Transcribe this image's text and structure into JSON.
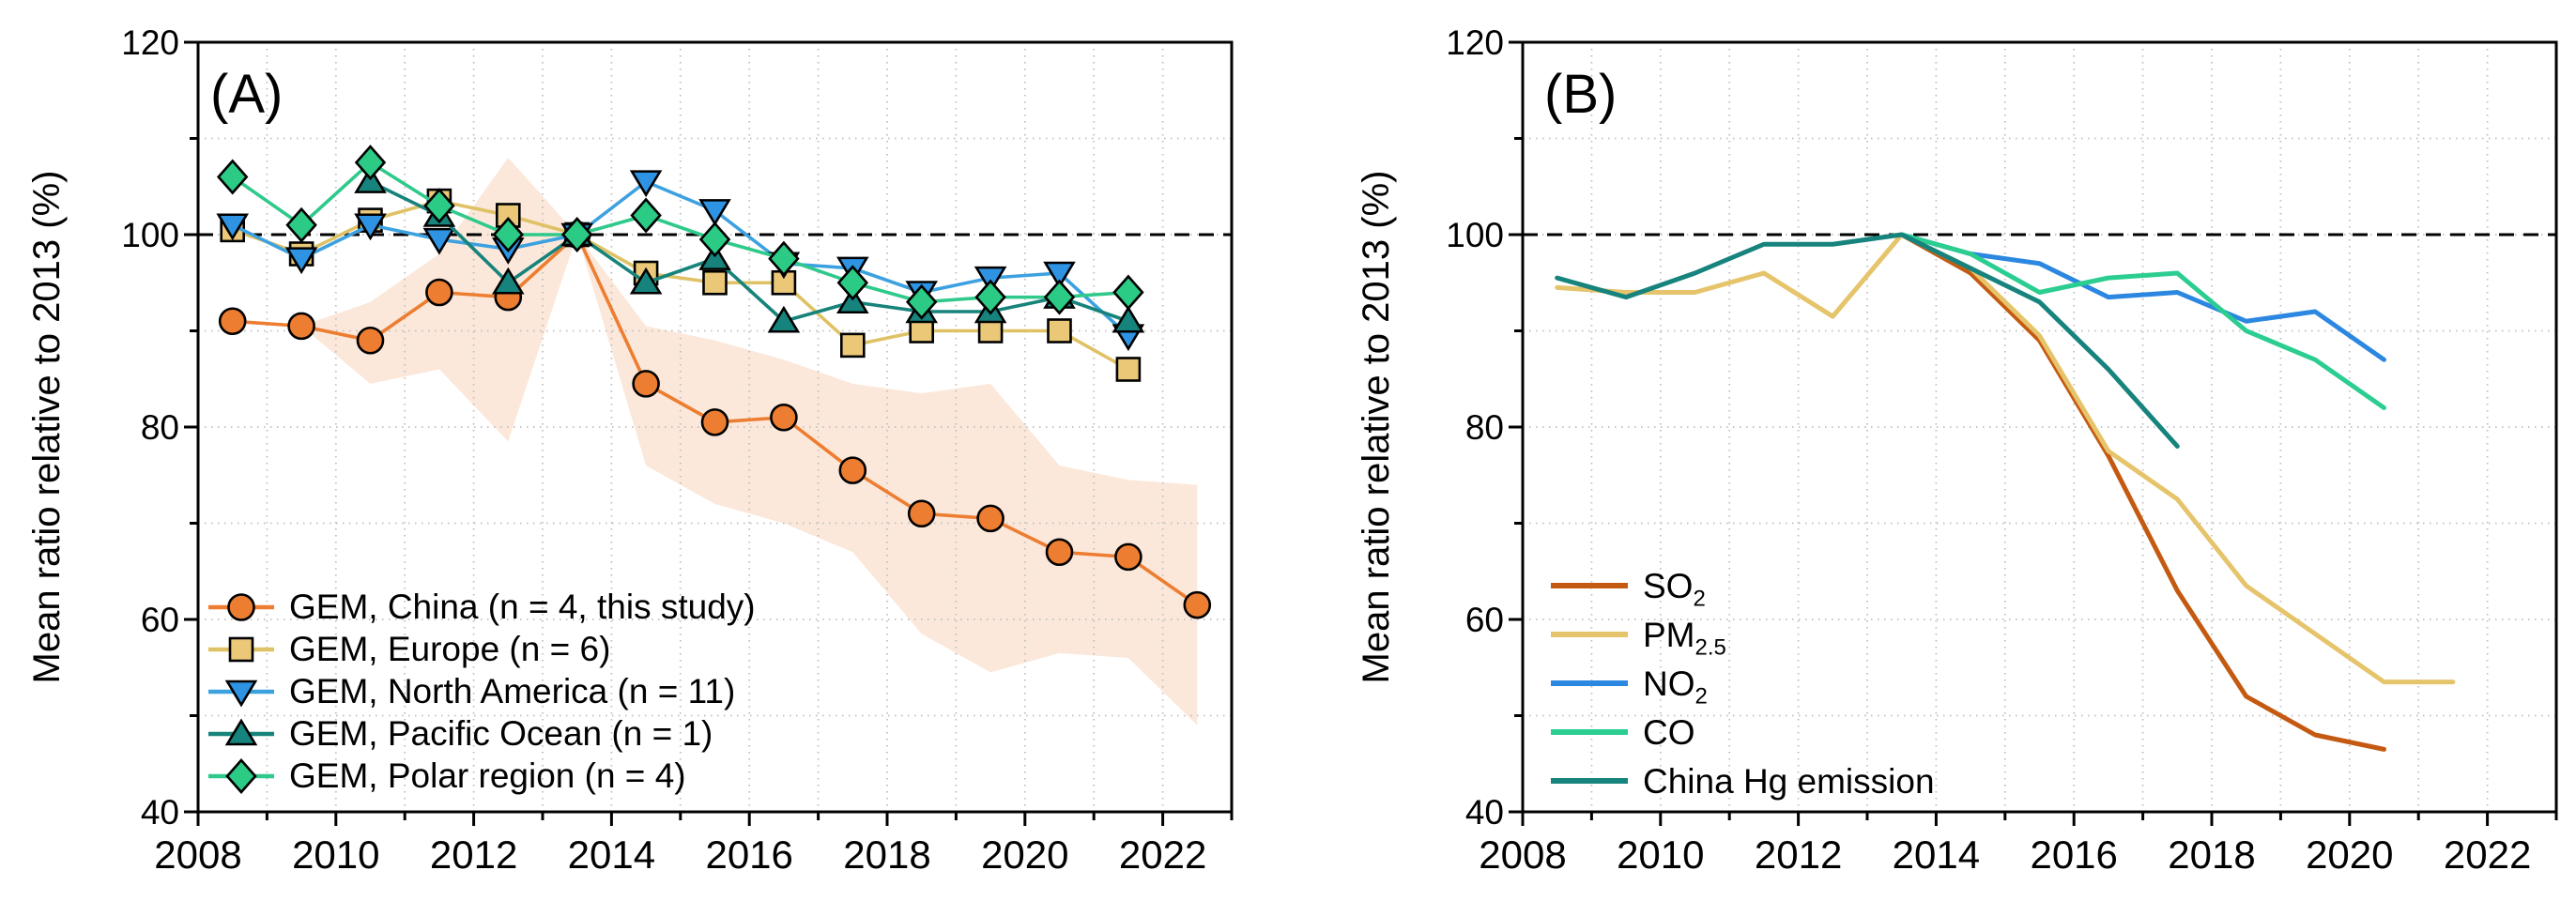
{
  "figure": {
    "kind": "two-panel scientific line chart",
    "background": "#ffffff",
    "text_color": "#000000",
    "grid_color": "#bfbfbf",
    "refline_color": "#000000"
  },
  "chart_data": [
    {
      "type": "line",
      "panel_label": "(A)",
      "ylabel": "Mean ratio relative to 2013 (%)",
      "xlabel": "",
      "xlim": [
        2008,
        2023
      ],
      "ylim": [
        40,
        120
      ],
      "x_ticks": [
        2008,
        2010,
        2012,
        2014,
        2016,
        2018,
        2020,
        2022
      ],
      "y_ticks": [
        40,
        60,
        80,
        100,
        120
      ],
      "grid": "dotted gridlines every year and every 10 units",
      "refline_y": 100,
      "legend_position": "lower left",
      "band": {
        "label": "GEM China spread",
        "color": "#FBE5D6",
        "x": [
          2009.5,
          2010.5,
          2011.5,
          2012.5,
          2013.5,
          2014.5,
          2015.5,
          2016.5,
          2017.5,
          2018.5,
          2019.5,
          2020.5,
          2021.5,
          2022.5
        ],
        "upper": [
          90.5,
          93,
          98,
          108,
          100,
          90.5,
          89,
          87,
          84.5,
          83.5,
          84.5,
          76,
          74.5,
          74
        ],
        "lower": [
          90.5,
          84.5,
          86,
          78.5,
          100,
          76,
          72,
          70,
          67,
          58.5,
          54.5,
          56.5,
          56,
          49
        ]
      },
      "series": [
        {
          "label_main": "GEM, China (n = 4, this study)",
          "label_sub": "",
          "label_tail": "",
          "marker": "circle",
          "line_color": "#ED7D31",
          "fill_color": "#ED7D31",
          "x": [
            2008.5,
            2009.5,
            2010.5,
            2011.5,
            2012.5,
            2013.5,
            2014.5,
            2015.5,
            2016.5,
            2017.5,
            2018.5,
            2019.5,
            2020.5,
            2021.5,
            2022.5
          ],
          "y": [
            91,
            90.5,
            89,
            94,
            93.5,
            100,
            84.5,
            80.5,
            81,
            75.5,
            71,
            70.5,
            67,
            66.5,
            61.5
          ]
        },
        {
          "label_main": "GEM, Europe (n = 6)",
          "label_sub": "",
          "label_tail": "",
          "marker": "square",
          "line_color": "#DFC266",
          "fill_color": "#EAC878",
          "x": [
            2008.5,
            2009.5,
            2010.5,
            2011.5,
            2012.5,
            2013.5,
            2014.5,
            2015.5,
            2016.5,
            2017.5,
            2018.5,
            2019.5,
            2020.5,
            2021.5
          ],
          "y": [
            100.5,
            98,
            101.5,
            103.5,
            102,
            100,
            96,
            95,
            95,
            88.5,
            90,
            90,
            90,
            86
          ]
        },
        {
          "label_main": "GEM, North America (n = 11)",
          "label_sub": "",
          "label_tail": "",
          "marker": "triangle-down",
          "line_color": "#3DA1E0",
          "fill_color": "#2E93E2",
          "x": [
            2008.5,
            2009.5,
            2010.5,
            2011.5,
            2012.5,
            2013.5,
            2014.5,
            2015.5,
            2016.5,
            2017.5,
            2018.5,
            2019.5,
            2020.5,
            2021.5
          ],
          "y": [
            101,
            97.5,
            101,
            99.5,
            98.5,
            100,
            105.5,
            102.5,
            97,
            96.5,
            94,
            95.5,
            96,
            89.5
          ]
        },
        {
          "label_main": "GEM, Pacific Ocean (n = 1)",
          "label_sub": "",
          "label_tail": "",
          "marker": "triangle-up",
          "line_color": "#17837B",
          "fill_color": "#16837C",
          "x": [
            2010.5,
            2011.5,
            2012.5,
            2013.5,
            2014.5,
            2015.5,
            2016.5,
            2017.5,
            2018.5,
            2019.5,
            2020.5,
            2021.5
          ],
          "y": [
            105.5,
            102,
            95,
            100,
            95,
            97.5,
            91,
            93,
            92,
            92,
            93.5,
            91
          ]
        },
        {
          "label_main": "GEM, Polar region (n = 4)",
          "label_sub": "",
          "label_tail": "",
          "marker": "diamond",
          "line_color": "#2FC98B",
          "fill_color": "#2BCB86",
          "x": [
            2008.5,
            2009.5,
            2010.5,
            2011.5,
            2012.5,
            2013.5,
            2014.5,
            2015.5,
            2016.5,
            2017.5,
            2018.5,
            2019.5,
            2020.5,
            2021.5
          ],
          "y": [
            106,
            101,
            107.5,
            103,
            100,
            100,
            102,
            99.5,
            97.5,
            95,
            93,
            93.5,
            93.5,
            94
          ]
        }
      ]
    },
    {
      "type": "line",
      "panel_label": "(B)",
      "ylabel": "Mean ratio relative to 2013 (%)",
      "xlabel": "",
      "xlim": [
        2008,
        2023
      ],
      "ylim": [
        40,
        120
      ],
      "x_ticks": [
        2008,
        2010,
        2012,
        2014,
        2016,
        2018,
        2020,
        2022
      ],
      "y_ticks": [
        40,
        60,
        80,
        100,
        120
      ],
      "grid": "dotted gridlines every year and every 10 units",
      "refline_y": 100,
      "legend_position": "lower left",
      "band": null,
      "series": [
        {
          "label_main": "SO",
          "label_sub": "2",
          "label_tail": "",
          "marker": "none",
          "line_color": "#C45A11",
          "fill_color": "#C45A11",
          "x": [
            2013.5,
            2014.5,
            2015.5,
            2016.5,
            2017.5,
            2018.5,
            2019.5,
            2020.5
          ],
          "y": [
            100,
            96,
            89,
            77,
            63,
            52,
            48,
            46.5
          ]
        },
        {
          "label_main": "PM",
          "label_sub": "2.5",
          "label_tail": "",
          "marker": "none",
          "line_color": "#E5C46B",
          "fill_color": "#E5C46B",
          "x": [
            2008.5,
            2009.5,
            2010.5,
            2011.5,
            2012.5,
            2013.5,
            2014.5,
            2015.5,
            2016.5,
            2017.5,
            2018.5,
            2019.5,
            2020.5,
            2021.5
          ],
          "y": [
            94.5,
            94,
            94,
            96,
            91.5,
            100,
            96.5,
            89.5,
            77.5,
            72.5,
            63.5,
            58.5,
            53.5,
            53.5
          ]
        },
        {
          "label_main": "NO",
          "label_sub": "2",
          "label_tail": "",
          "marker": "none",
          "line_color": "#2B87E0",
          "fill_color": "#2B87E0",
          "x": [
            2013.5,
            2014.5,
            2015.5,
            2016.5,
            2017.5,
            2018.5,
            2019.5,
            2020.5
          ],
          "y": [
            100,
            98,
            97,
            93.5,
            94,
            91,
            92,
            87
          ]
        },
        {
          "label_main": "CO",
          "label_sub": "",
          "label_tail": "",
          "marker": "none",
          "line_color": "#2BCD90",
          "fill_color": "#2BCD90",
          "x": [
            2013.5,
            2014.5,
            2015.5,
            2016.5,
            2017.5,
            2018.5,
            2019.5,
            2020.5
          ],
          "y": [
            100,
            98,
            94,
            95.5,
            96,
            90,
            87,
            82
          ]
        },
        {
          "label_main": "China Hg emission",
          "label_sub": "",
          "label_tail": "",
          "marker": "none",
          "line_color": "#16837C",
          "fill_color": "#16837C",
          "x": [
            2008.5,
            2009.5,
            2010.5,
            2011.5,
            2012.5,
            2013.5,
            2014.5,
            2015.5,
            2016.5,
            2017.5
          ],
          "y": [
            95.5,
            93.5,
            96,
            99,
            99,
            100,
            96.5,
            93,
            86,
            78
          ]
        }
      ]
    }
  ]
}
